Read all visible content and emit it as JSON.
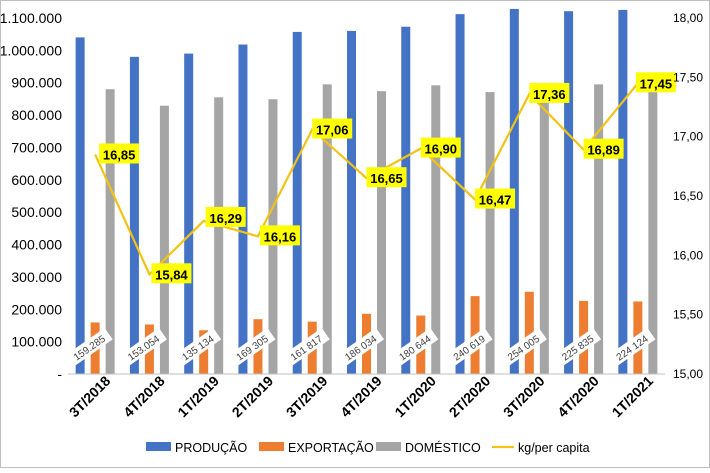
{
  "chart_data": {
    "type": "bar",
    "title": "",
    "categories": [
      "3T/2018",
      "4T/2018",
      "1T/2019",
      "2T/2019",
      "3T/2019",
      "4T/2019",
      "1T/2020",
      "2T/2020",
      "3T/2020",
      "4T/2020",
      "1T/2021"
    ],
    "ylim": [
      0,
      1100000
    ],
    "y_ticks": [
      "-",
      "100.000",
      "200.000",
      "300.000",
      "400.000",
      "500.000",
      "600.000",
      "700.000",
      "800.000",
      "900.000",
      "1.000.000",
      "1.100.000"
    ],
    "y2lim": [
      15.0,
      18.0
    ],
    "y2_ticks": [
      "15,00",
      "15,50",
      "16,00",
      "16,50",
      "17,00",
      "17,50",
      "18,00"
    ],
    "grid": false,
    "legend_position": "bottom",
    "series": [
      {
        "name": "PRODUÇÃO",
        "kind": "bar",
        "color": "#4472C4",
        "values": [
          1040000,
          980000,
          990000,
          1018000,
          1057000,
          1060000,
          1073000,
          1112000,
          1128000,
          1121000,
          1125000
        ]
      },
      {
        "name": "EXPORTAÇÃO",
        "kind": "bar",
        "color": "#ED7D31",
        "values": [
          159285,
          153054,
          135134,
          169305,
          161817,
          186034,
          180644,
          240619,
          254005,
          225835,
          224124
        ],
        "labels": [
          "159.285",
          "153.054",
          "135 134",
          "169 305",
          "161 817",
          "186 034",
          "180 644",
          "240 619",
          "254 005",
          "225 835",
          "224 124"
        ]
      },
      {
        "name": "DOMÉSTICO",
        "kind": "bar",
        "color": "#A5A5A5",
        "values": [
          880000,
          829000,
          855000,
          849000,
          895000,
          874000,
          892000,
          871000,
          874000,
          895000,
          922000
        ]
      },
      {
        "name": "kg/per capita",
        "kind": "line",
        "axis": "right",
        "color": "#F2C314",
        "values": [
          16.85,
          15.84,
          16.29,
          16.16,
          17.06,
          16.65,
          16.9,
          16.47,
          17.36,
          16.89,
          17.45
        ],
        "labels": [
          "16,85",
          "15,84",
          "16,29",
          "16,16",
          "17,06",
          "16,65",
          "16,90",
          "16,47",
          "17,36",
          "16,89",
          "17,45"
        ]
      }
    ]
  }
}
